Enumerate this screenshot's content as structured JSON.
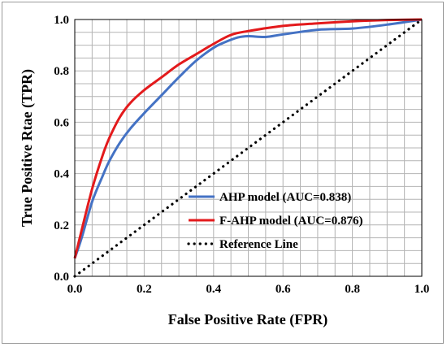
{
  "chart_data": {
    "type": "line",
    "title": "",
    "xlabel": "False Positive Rate (FPR)",
    "ylabel": "True Positive Rtae (TPR)",
    "xlim": [
      0,
      1
    ],
    "ylim": [
      0,
      1
    ],
    "x_ticks": [
      "0.0",
      "0.2",
      "0.4",
      "0.6",
      "0.8",
      "1.0"
    ],
    "y_ticks": [
      "0.0",
      "0.2",
      "0.4",
      "0.6",
      "0.8",
      "1.0"
    ],
    "grid": true,
    "grid_minor_step": 0.05,
    "legend_position": "lower-right",
    "series": [
      {
        "name": "AHP model (AUC=0.838)",
        "color": "#4472c4",
        "style": "solid",
        "points": [
          [
            0,
            0.07
          ],
          [
            0.02,
            0.15
          ],
          [
            0.05,
            0.29
          ],
          [
            0.08,
            0.39
          ],
          [
            0.1,
            0.45
          ],
          [
            0.13,
            0.52
          ],
          [
            0.16,
            0.575
          ],
          [
            0.2,
            0.635
          ],
          [
            0.25,
            0.705
          ],
          [
            0.3,
            0.775
          ],
          [
            0.35,
            0.84
          ],
          [
            0.4,
            0.89
          ],
          [
            0.43,
            0.91
          ],
          [
            0.47,
            0.93
          ],
          [
            0.5,
            0.935
          ],
          [
            0.55,
            0.932
          ],
          [
            0.6,
            0.942
          ],
          [
            0.7,
            0.96
          ],
          [
            0.8,
            0.965
          ],
          [
            0.9,
            0.98
          ],
          [
            1.0,
            1.0
          ]
        ]
      },
      {
        "name": "F-AHP model (AUC=0.876)",
        "color": "#e31a1c",
        "style": "solid",
        "points": [
          [
            0,
            0.07
          ],
          [
            0.02,
            0.18
          ],
          [
            0.05,
            0.34
          ],
          [
            0.08,
            0.47
          ],
          [
            0.1,
            0.54
          ],
          [
            0.13,
            0.62
          ],
          [
            0.16,
            0.675
          ],
          [
            0.2,
            0.725
          ],
          [
            0.25,
            0.775
          ],
          [
            0.3,
            0.825
          ],
          [
            0.35,
            0.865
          ],
          [
            0.4,
            0.905
          ],
          [
            0.45,
            0.94
          ],
          [
            0.5,
            0.955
          ],
          [
            0.6,
            0.975
          ],
          [
            0.7,
            0.985
          ],
          [
            0.8,
            0.993
          ],
          [
            0.9,
            0.998
          ],
          [
            1.0,
            1.0
          ]
        ]
      },
      {
        "name": "Reference Line",
        "color": "#000000",
        "style": "dotted",
        "points": [
          [
            0,
            0
          ],
          [
            1,
            1
          ]
        ]
      }
    ]
  }
}
